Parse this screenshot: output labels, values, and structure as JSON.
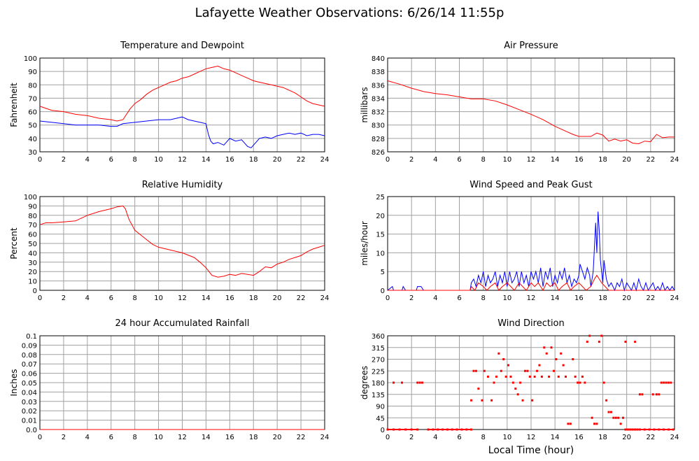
{
  "title": "Lafayette Weather Observations: 6/26/14 11:55p",
  "x_axis_label": "Local Time (hour)",
  "colors": {
    "red": "#ff0000",
    "blue": "#0000ff",
    "grid": "#a0a0a0",
    "frame": "#000000"
  },
  "chart_data": [
    {
      "id": "temp",
      "type": "line",
      "title": "Temperature and Dewpoint",
      "ylabel": "Fahrenheit",
      "xlim": [
        0,
        24
      ],
      "ylim": [
        30,
        100
      ],
      "xticks": [
        0,
        2,
        4,
        6,
        8,
        10,
        12,
        14,
        16,
        18,
        20,
        22,
        24
      ],
      "yticks": [
        30,
        40,
        50,
        60,
        70,
        80,
        90,
        100
      ],
      "grid": true,
      "series": [
        {
          "color": "red",
          "x": [
            0,
            1,
            2,
            3,
            4,
            5,
            6,
            6.5,
            7,
            7.3,
            7.6,
            8,
            8.5,
            9,
            9.5,
            10,
            10.5,
            11,
            11.5,
            12,
            12.5,
            13,
            13.5,
            14,
            14.5,
            15,
            15.5,
            16,
            16.5,
            17,
            17.5,
            18,
            18.5,
            19,
            19.5,
            20,
            20.5,
            21,
            21.5,
            22,
            22.5,
            23,
            23.5,
            24
          ],
          "y": [
            64,
            61,
            60,
            58,
            57,
            55,
            54,
            53,
            54,
            58,
            62,
            66,
            69,
            73,
            76,
            78,
            80,
            82,
            83,
            85,
            86,
            88,
            90,
            92,
            93,
            94,
            92,
            91,
            89,
            87,
            85,
            83,
            82,
            81,
            80,
            79,
            78,
            76,
            74,
            71,
            68,
            66,
            65,
            64
          ]
        },
        {
          "color": "blue",
          "x": [
            0,
            1,
            2,
            3,
            4,
            5,
            6,
            6.5,
            7,
            8,
            9,
            10,
            11,
            11.5,
            12,
            12.5,
            13,
            13.5,
            14,
            14.2,
            14.4,
            14.6,
            15,
            15.5,
            16,
            16.5,
            17,
            17.5,
            17.8,
            18,
            18.5,
            19,
            19.5,
            20,
            20.5,
            21,
            21.5,
            22,
            22.5,
            23,
            23.5,
            24
          ],
          "y": [
            53,
            52,
            51,
            50,
            50,
            50,
            49,
            49,
            51,
            52,
            53,
            54,
            54,
            55,
            56,
            54,
            53,
            52,
            51,
            43,
            38,
            36,
            37,
            35,
            40,
            38,
            39,
            34,
            33,
            35,
            40,
            41,
            40,
            42,
            43,
            44,
            43,
            44,
            42,
            43,
            43,
            42
          ]
        }
      ]
    },
    {
      "id": "pressure",
      "type": "line",
      "title": "Air Pressure",
      "ylabel": "millibars",
      "xlim": [
        0,
        24
      ],
      "ylim": [
        826,
        840
      ],
      "xticks": [
        0,
        2,
        4,
        6,
        8,
        10,
        12,
        14,
        16,
        18,
        20,
        22,
        24
      ],
      "yticks": [
        826,
        828,
        830,
        832,
        834,
        836,
        838,
        840
      ],
      "grid": true,
      "series": [
        {
          "color": "red",
          "x": [
            0,
            1,
            2,
            3,
            4,
            5,
            6,
            7,
            8,
            9,
            10,
            11,
            12,
            13,
            14,
            15,
            15.5,
            16,
            17,
            17.5,
            18,
            18.5,
            19,
            19.5,
            20,
            20.5,
            21,
            21.5,
            22,
            22.5,
            23,
            23.5,
            24
          ],
          "y": [
            836.6,
            836.1,
            835.5,
            835,
            834.7,
            834.5,
            834.2,
            833.9,
            833.9,
            833.6,
            833,
            832.3,
            831.6,
            830.8,
            829.8,
            829,
            828.6,
            828.3,
            828.3,
            828.8,
            828.5,
            827.6,
            827.9,
            827.6,
            827.8,
            827.3,
            827.2,
            827.6,
            827.5,
            828.6,
            828.1,
            828.2,
            828.2
          ]
        }
      ]
    },
    {
      "id": "humidity",
      "type": "line",
      "title": "Relative Humidity",
      "ylabel": "Percent",
      "xlim": [
        0,
        24
      ],
      "ylim": [
        0,
        100
      ],
      "xticks": [
        0,
        2,
        4,
        6,
        8,
        10,
        12,
        14,
        16,
        18,
        20,
        22,
        24
      ],
      "yticks": [
        0,
        10,
        20,
        30,
        40,
        50,
        60,
        70,
        80,
        90,
        100
      ],
      "grid": true,
      "series": [
        {
          "color": "red",
          "x": [
            0,
            0.5,
            1,
            2,
            3,
            3.5,
            4,
            5,
            6,
            6.5,
            7,
            7.2,
            7.5,
            8,
            8.5,
            9,
            9.5,
            10,
            11,
            12,
            13,
            13.5,
            14,
            14.5,
            15,
            15.5,
            16,
            16.5,
            17,
            17.5,
            18,
            18.5,
            19,
            19.5,
            20,
            20.5,
            21,
            21.5,
            22,
            22.5,
            23,
            23.5,
            24
          ],
          "y": [
            70,
            72,
            72,
            73,
            74,
            77,
            80,
            84,
            87,
            89,
            90,
            87,
            76,
            64,
            59,
            54,
            49,
            46,
            43,
            40,
            35,
            30,
            24,
            16,
            14,
            15,
            17,
            16,
            18,
            17,
            16,
            20,
            25,
            24,
            28,
            30,
            33,
            35,
            37,
            41,
            44,
            46,
            48
          ]
        }
      ]
    },
    {
      "id": "wind",
      "type": "line",
      "title": "Wind Speed and Peak Gust",
      "ylabel": "miles/hour",
      "xlim": [
        0,
        24
      ],
      "ylim": [
        0,
        25
      ],
      "xticks": [
        0,
        2,
        4,
        6,
        8,
        10,
        12,
        14,
        16,
        18,
        20,
        22,
        24
      ],
      "yticks": [
        0,
        5,
        10,
        15,
        20,
        25
      ],
      "grid": true,
      "series": [
        {
          "color": "blue",
          "x": [
            0,
            0.4,
            0.5,
            0.7,
            1.2,
            1.3,
            1.5,
            2.4,
            2.5,
            2.8,
            3,
            6.9,
            7,
            7.2,
            7.4,
            7.6,
            7.8,
            8,
            8.2,
            8.4,
            8.6,
            8.8,
            9,
            9.2,
            9.4,
            9.6,
            9.8,
            10,
            10.2,
            10.4,
            10.6,
            10.8,
            11,
            11.2,
            11.4,
            11.6,
            11.8,
            12,
            12.2,
            12.4,
            12.6,
            12.8,
            13,
            13.2,
            13.4,
            13.6,
            13.8,
            14,
            14.2,
            14.4,
            14.6,
            14.8,
            15,
            15.2,
            15.4,
            15.6,
            15.8,
            16,
            16.1,
            16.3,
            16.5,
            16.7,
            16.9,
            17,
            17.2,
            17.4,
            17.5,
            17.6,
            17.7,
            17.8,
            17.9,
            18,
            18.1,
            18.3,
            18.5,
            18.7,
            19,
            19.2,
            19.4,
            19.6,
            19.8,
            20,
            20.2,
            20.4,
            20.6,
            20.8,
            21,
            21.2,
            21.4,
            21.6,
            21.8,
            22,
            22.2,
            22.4,
            22.6,
            22.8,
            23,
            23.2,
            23.4,
            23.6,
            23.8,
            24
          ],
          "y": [
            0,
            1,
            0,
            0,
            0,
            1,
            0,
            0,
            1,
            1,
            0,
            0,
            2,
            3,
            1,
            4,
            2,
            5,
            1,
            4,
            2,
            3,
            5,
            1,
            4,
            2,
            5,
            1,
            5,
            2,
            3,
            5,
            1,
            5,
            2,
            4,
            1,
            5,
            3,
            5,
            2,
            6,
            1,
            5,
            3,
            6,
            1,
            4,
            2,
            5,
            3,
            6,
            2,
            4,
            1,
            3,
            2,
            4,
            7,
            5,
            3,
            6,
            4,
            1,
            5,
            18,
            10,
            21,
            16,
            8,
            5,
            2,
            8,
            3,
            1,
            2,
            0,
            2,
            1,
            3,
            0,
            2,
            1,
            0,
            2,
            0,
            3,
            1,
            0,
            2,
            0,
            1,
            2,
            0,
            1,
            0,
            2,
            0,
            1,
            0,
            1,
            0
          ]
        },
        {
          "color": "red",
          "x": [
            0,
            6.9,
            7,
            7.3,
            7.6,
            8,
            8.3,
            8.6,
            9,
            9.3,
            9.6,
            10,
            10.3,
            10.6,
            11,
            11.3,
            11.6,
            12,
            12.3,
            12.6,
            13,
            13.3,
            13.6,
            14,
            14.3,
            14.6,
            15,
            15.3,
            15.6,
            16,
            16.3,
            16.6,
            17,
            17.3,
            17.5,
            17.7,
            17.9,
            18.2,
            18.5,
            19,
            24
          ],
          "y": [
            0,
            0,
            1,
            0,
            2,
            1,
            0,
            1,
            2,
            0,
            1,
            2,
            1,
            0,
            2,
            1,
            0,
            2,
            1,
            2,
            0,
            2,
            1,
            2,
            0,
            1,
            2,
            0,
            1,
            2,
            1,
            0,
            1,
            3,
            4,
            3,
            2,
            1,
            0,
            0,
            0
          ]
        }
      ]
    },
    {
      "id": "rain",
      "type": "line",
      "title": "24 hour Accumulated Rainfall",
      "ylabel": "Inches",
      "xlim": [
        0,
        24
      ],
      "ylim": [
        0,
        0.1
      ],
      "xticks": [
        0,
        2,
        4,
        6,
        8,
        10,
        12,
        14,
        16,
        18,
        20,
        22,
        24
      ],
      "yticks": [
        "0.0",
        "0.01",
        "0.02",
        "0.03",
        "0.04",
        "0.05",
        "0.06",
        "0.07",
        "0.08",
        "0.09",
        "0.1"
      ],
      "grid": true,
      "series": [
        {
          "color": "red",
          "x": [
            0,
            24
          ],
          "y": [
            0,
            0
          ]
        }
      ]
    },
    {
      "id": "direction",
      "type": "scatter",
      "title": "Wind Direction",
      "ylabel": "degrees",
      "xlim": [
        0,
        24
      ],
      "ylim": [
        0,
        360
      ],
      "xticks": [
        0,
        2,
        4,
        6,
        8,
        10,
        12,
        14,
        16,
        18,
        20,
        22,
        24
      ],
      "yticks": [
        0,
        45,
        90,
        135,
        180,
        225,
        270,
        315,
        360
      ],
      "grid": true,
      "series": [
        {
          "color": "red",
          "x": [
            0.5,
            1.2,
            2.5,
            2.7,
            2.9,
            7.0,
            7.2,
            7.4,
            7.6,
            7.9,
            8.1,
            8.4,
            8.7,
            8.9,
            9.1,
            9.3,
            9.5,
            9.7,
            9.9,
            10.1,
            10.3,
            10.5,
            10.7,
            10.9,
            11.1,
            11.3,
            11.5,
            11.7,
            11.9,
            12.1,
            12.3,
            12.5,
            12.7,
            12.9,
            13.1,
            13.3,
            13.5,
            13.7,
            13.9,
            14.1,
            14.3,
            14.5,
            14.7,
            14.9,
            15.1,
            15.3,
            15.5,
            15.7,
            15.9,
            16.1,
            16.3,
            16.5,
            16.7,
            16.9,
            17.1,
            17.3,
            17.5,
            17.7,
            17.9,
            18.1,
            18.3,
            18.5,
            18.7,
            18.9,
            19.1,
            19.3,
            19.5,
            19.7,
            19.9,
            20.1,
            20.3,
            20.5,
            20.7,
            20.9,
            21.1,
            21.3,
            22.2,
            22.5,
            22.7,
            22.9,
            23.1,
            23.3,
            23.5,
            23.7
          ],
          "y": [
            180,
            180,
            180,
            180,
            180,
            112,
            225,
            225,
            157,
            112,
            225,
            203,
            112,
            180,
            203,
            292,
            225,
            270,
            203,
            247,
            203,
            180,
            157,
            135,
            180,
            112,
            225,
            225,
            203,
            112,
            203,
            225,
            247,
            203,
            315,
            292,
            203,
            315,
            225,
            270,
            203,
            292,
            247,
            203,
            22,
            22,
            270,
            203,
            180,
            180,
            203,
            180,
            337,
            360,
            45,
            22,
            22,
            337,
            360,
            180,
            112,
            67,
            67,
            45,
            45,
            45,
            22,
            45,
            337,
            0,
            0,
            0,
            337,
            0,
            135,
            135,
            135,
            135,
            135,
            180,
            180,
            180,
            180,
            180
          ]
        },
        {
          "color": "red",
          "x": [
            0,
            0.5,
            1,
            1.5,
            2,
            2.5,
            3.4,
            3.8,
            4.2,
            4.6,
            5,
            5.4,
            5.8,
            6.2,
            6.6,
            7,
            19.9,
            20.3,
            20.7,
            21.1,
            21.5,
            21.9,
            22.3,
            22.7,
            23.1,
            23.5,
            23.9
          ],
          "y": [
            0,
            0,
            0,
            0,
            0,
            0,
            0,
            0,
            0,
            0,
            0,
            0,
            0,
            0,
            0,
            0,
            0,
            0,
            0,
            0,
            0,
            0,
            0,
            0,
            0,
            0,
            0
          ]
        }
      ]
    }
  ]
}
